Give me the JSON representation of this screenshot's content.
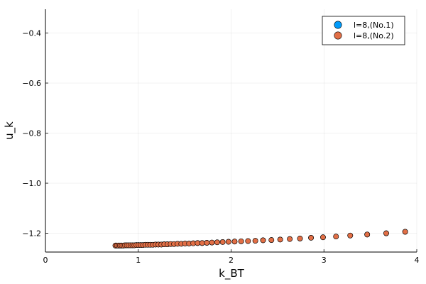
{
  "chart_data": {
    "type": "scatter",
    "xlabel": "k_BT",
    "ylabel": "u_k",
    "xlim": [
      0,
      4
    ],
    "ylim": [
      -1.275,
      -0.305
    ],
    "xticks": [
      0,
      1,
      2,
      3,
      4
    ],
    "xtick_labels": [
      "0",
      "1",
      "2",
      "3",
      "4"
    ],
    "yticks": [
      -1.2,
      -1.0,
      -0.8,
      -0.6,
      -0.4
    ],
    "ytick_labels": [
      "−1.2",
      "−1.0",
      "−0.8",
      "−0.6",
      "−0.4"
    ],
    "grid": true,
    "legend_position": "top-right",
    "series": [
      {
        "name": "l=8,(No.1)",
        "color": "#009AFA",
        "x": [
          0.754,
          0.77,
          0.786,
          0.803,
          0.821,
          0.839,
          0.857,
          0.876,
          0.896,
          0.916,
          0.937,
          0.958,
          0.98,
          1.003,
          1.027,
          1.051,
          1.076,
          1.102,
          1.129,
          1.157,
          1.186,
          1.216,
          1.248,
          1.28,
          1.314,
          1.349,
          1.385,
          1.423,
          1.463,
          1.504,
          1.547,
          1.592,
          1.639,
          1.688,
          1.739,
          1.793,
          1.85,
          1.909,
          1.972,
          2.038,
          2.108,
          2.182,
          2.261,
          2.344,
          2.434,
          2.529,
          2.632,
          2.742,
          2.861,
          2.99,
          3.13,
          3.283,
          3.466,
          3.671,
          3.875
        ],
        "y": [
          -1.249,
          -1.249,
          -1.249,
          -1.249,
          -1.249,
          -1.249,
          -1.248,
          -1.248,
          -1.248,
          -1.248,
          -1.248,
          -1.248,
          -1.247,
          -1.247,
          -1.247,
          -1.247,
          -1.246,
          -1.246,
          -1.246,
          -1.246,
          -1.245,
          -1.245,
          -1.245,
          -1.244,
          -1.244,
          -1.243,
          -1.243,
          -1.242,
          -1.242,
          -1.241,
          -1.241,
          -1.24,
          -1.239,
          -1.239,
          -1.238,
          -1.237,
          -1.236,
          -1.235,
          -1.234,
          -1.233,
          -1.232,
          -1.231,
          -1.23,
          -1.228,
          -1.227,
          -1.225,
          -1.223,
          -1.221,
          -1.218,
          -1.216,
          -1.213,
          -1.209,
          -1.205,
          -1.2,
          -1.194
        ]
      },
      {
        "name": "l=8,(No.2)",
        "color": "#E26F46",
        "x": [
          0.754,
          0.77,
          0.786,
          0.803,
          0.821,
          0.839,
          0.857,
          0.876,
          0.896,
          0.916,
          0.937,
          0.958,
          0.98,
          1.003,
          1.027,
          1.051,
          1.076,
          1.102,
          1.129,
          1.157,
          1.186,
          1.216,
          1.248,
          1.28,
          1.314,
          1.349,
          1.385,
          1.423,
          1.463,
          1.504,
          1.547,
          1.592,
          1.639,
          1.688,
          1.739,
          1.793,
          1.85,
          1.909,
          1.972,
          2.038,
          2.108,
          2.182,
          2.261,
          2.344,
          2.434,
          2.529,
          2.632,
          2.742,
          2.861,
          2.99,
          3.13,
          3.283,
          3.466,
          3.671,
          3.875
        ],
        "y": [
          -1.249,
          -1.249,
          -1.249,
          -1.249,
          -1.249,
          -1.249,
          -1.248,
          -1.248,
          -1.248,
          -1.248,
          -1.248,
          -1.248,
          -1.247,
          -1.247,
          -1.247,
          -1.247,
          -1.246,
          -1.246,
          -1.246,
          -1.246,
          -1.245,
          -1.245,
          -1.245,
          -1.244,
          -1.244,
          -1.243,
          -1.243,
          -1.242,
          -1.242,
          -1.241,
          -1.241,
          -1.24,
          -1.239,
          -1.239,
          -1.238,
          -1.237,
          -1.236,
          -1.235,
          -1.234,
          -1.233,
          -1.232,
          -1.231,
          -1.23,
          -1.228,
          -1.227,
          -1.225,
          -1.223,
          -1.221,
          -1.218,
          -1.216,
          -1.213,
          -1.209,
          -1.205,
          -1.2,
          -1.194
        ]
      }
    ]
  }
}
